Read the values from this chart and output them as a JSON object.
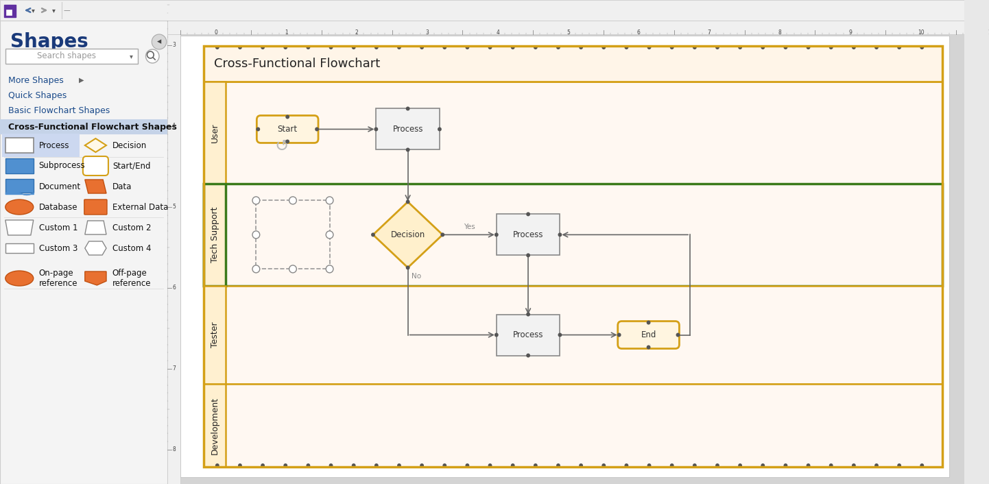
{
  "bg_color": "#e8e8e8",
  "sidebar_bg": "#f4f4f4",
  "sidebar_border": "#cccccc",
  "sidebar_title": "Shapes",
  "sidebar_title_color": "#1a3a7a",
  "sidebar_menu": [
    "More Shapes",
    "Quick Shapes",
    "Basic Flowchart Shapes",
    "Cross-Functional Flowchart Shapes"
  ],
  "diagram_title": "Cross-Functional Flowchart",
  "diagram_border_color": "#d4a017",
  "diagram_title_bg": "#fff8f0",
  "lane_bg": "#fff8f2",
  "lane_label_bg": "#fff0d0",
  "tech_support_border": "#3a7a1a",
  "arrow_color": "#666666",
  "shape_border": "#888888",
  "shape_bg": "#f2f2f2",
  "decision_bg": "#fff0cc",
  "decision_border": "#d4a017",
  "start_end_bg": "#fff5e0",
  "start_end_border": "#d4a017",
  "dot_color": "#555555",
  "lanes": [
    "User",
    "Tech Support",
    "Tester",
    "Development"
  ],
  "toolbar_bg": "#f0f0f0",
  "ruler_bg": "#f0f0f0",
  "canvas_bg": "#ffffff",
  "white": "#ffffff"
}
